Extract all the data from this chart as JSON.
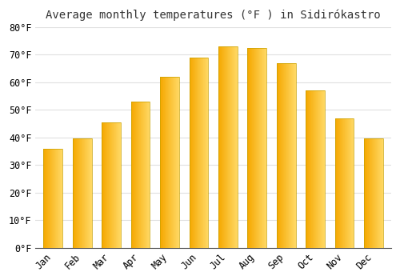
{
  "title": "Average monthly temperatures (°F ) in Sidirókastro",
  "months": [
    "Jan",
    "Feb",
    "Mar",
    "Apr",
    "May",
    "Jun",
    "Jul",
    "Aug",
    "Sep",
    "Oct",
    "Nov",
    "Dec"
  ],
  "values": [
    36,
    39.5,
    45.5,
    53,
    62,
    69,
    73,
    72.5,
    67,
    57,
    47,
    39.5
  ],
  "ylim": [
    0,
    80
  ],
  "yticks": [
    0,
    10,
    20,
    30,
    40,
    50,
    60,
    70,
    80
  ],
  "background_color": "#FFFFFF",
  "plot_bg_color": "#FFFFFF",
  "grid_color": "#E0E0E0",
  "bar_left_color": "#F5A800",
  "bar_right_color": "#FFD966",
  "bar_edge_color": "#C8A000",
  "title_fontsize": 10,
  "tick_fontsize": 8.5
}
